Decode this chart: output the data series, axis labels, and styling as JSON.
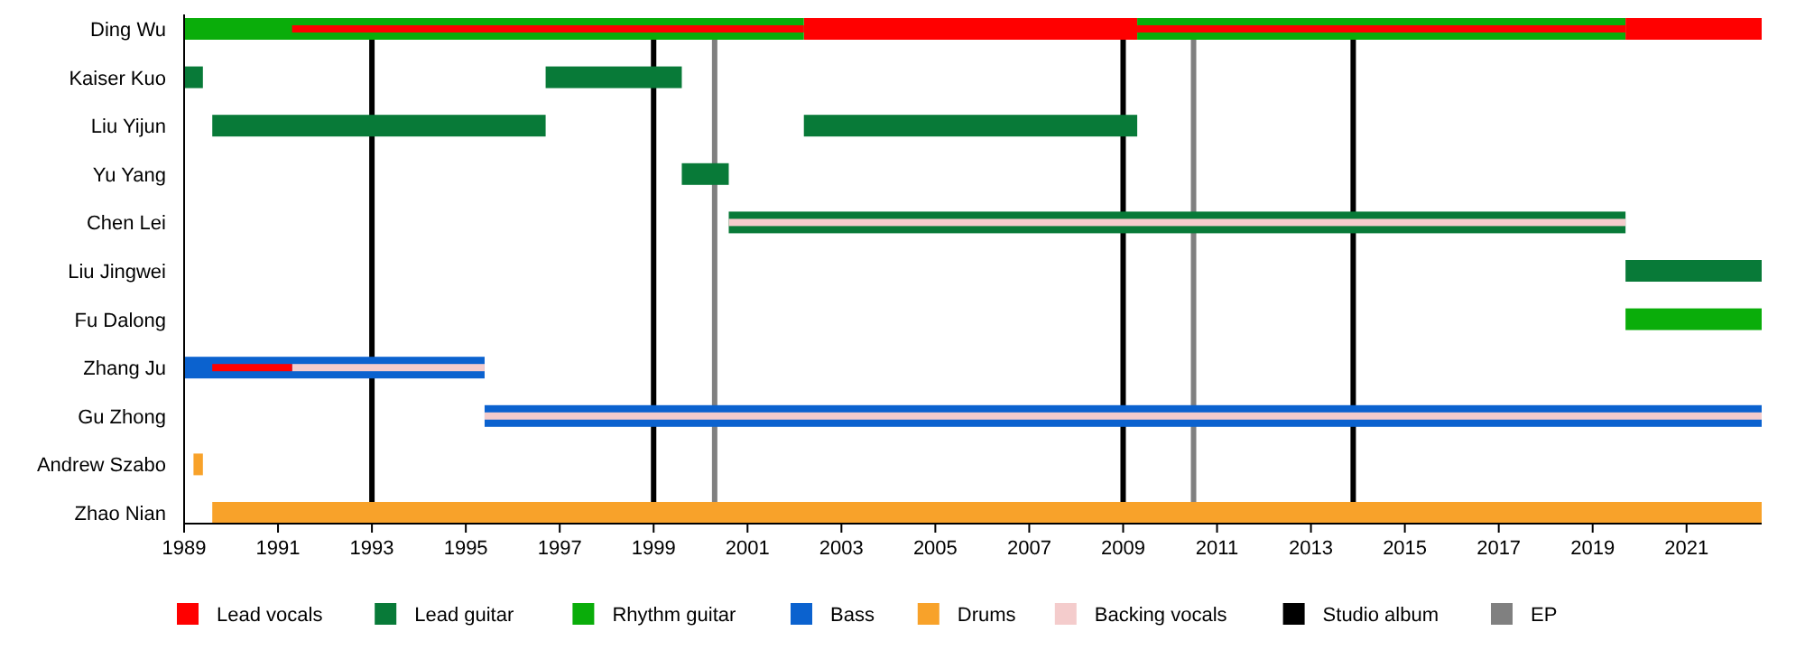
{
  "chart_data": {
    "type": "bar",
    "orientation": "horizontal",
    "categories": [
      "Ding Wu",
      "Kaiser Kuo",
      "Liu Yijun",
      "Yu Yang",
      "Chen Lei",
      "Liu Jingwei",
      "Fu Dalong",
      "Zhang Ju",
      "Gu Zhong",
      "Andrew Szabo",
      "Zhao Nian"
    ],
    "series": [
      {
        "name": "Lead vocals",
        "color": "#ff0000",
        "base": [
          2002.2,
          null,
          null,
          null,
          null,
          null,
          null,
          null,
          null,
          null,
          null
        ],
        "values": [
          7.1,
          null,
          null,
          null,
          null,
          null,
          null,
          null,
          null,
          null,
          null
        ]
      },
      {
        "name": "Lead guitar",
        "color": "#087a38",
        "base": [
          null,
          1989,
          1989.6,
          1999.6,
          2000.6,
          2019.7,
          null,
          null,
          null,
          null,
          null
        ],
        "values": [
          null,
          0.4,
          7.1,
          1.0,
          19.1,
          2.9,
          null,
          null,
          null,
          null,
          null
        ]
      },
      {
        "name": "Rhythm guitar",
        "color": "#0aad0a",
        "base": [
          1989,
          null,
          null,
          null,
          null,
          null,
          2019.7,
          null,
          null,
          null,
          null
        ],
        "values": [
          13.2,
          null,
          null,
          null,
          null,
          null,
          2.9,
          null,
          null,
          null,
          null
        ]
      },
      {
        "name": "Bass",
        "color": "#0b62cf",
        "base": [
          null,
          null,
          null,
          null,
          null,
          null,
          null,
          1989,
          1995.4,
          null,
          null
        ],
        "values": [
          null,
          null,
          null,
          null,
          null,
          null,
          null,
          6.4,
          27.2,
          null,
          null
        ]
      },
      {
        "name": "Drums",
        "color": "#f8a22a",
        "base": [
          null,
          null,
          null,
          null,
          null,
          null,
          null,
          null,
          null,
          1989.2,
          1989.6
        ],
        "values": [
          null,
          null,
          null,
          null,
          null,
          null,
          null,
          null,
          null,
          0.2,
          33.0
        ]
      },
      {
        "name": "Backing vocals",
        "color": "#f4cccc",
        "base": [
          null,
          null,
          null,
          null,
          2000.6,
          null,
          null,
          1991.3,
          1995.4,
          null,
          null
        ],
        "values": [
          null,
          null,
          null,
          null,
          19.1,
          null,
          null,
          4.1,
          27.2,
          null,
          null
        ]
      },
      {
        "color": "#087a38",
        "base": [
          null,
          1996.7,
          2002.2,
          null,
          null,
          null,
          null,
          null,
          null,
          null,
          null
        ],
        "values": [
          null,
          2.9,
          7.1,
          null,
          null,
          null,
          null,
          null,
          null,
          null,
          null
        ]
      },
      {
        "color": "#0aad0a",
        "base": [
          2009.3,
          null,
          null,
          null,
          null,
          null,
          null,
          null,
          null,
          null,
          null
        ],
        "values": [
          10.4,
          null,
          null,
          null,
          null,
          null,
          null,
          null,
          null,
          null,
          null
        ]
      },
      {
        "color": "#ff0000",
        "base": [
          2019.7,
          null,
          null,
          null,
          null,
          null,
          null,
          null,
          null,
          null,
          null
        ],
        "values": [
          2.9,
          null,
          null,
          null,
          null,
          null,
          null,
          null,
          null,
          null,
          null
        ]
      },
      {
        "color": "#ff0000",
        "base": [
          1991.3,
          null,
          null,
          null,
          null,
          null,
          null,
          1989.6,
          null,
          null,
          null
        ],
        "values": [
          10.9,
          null,
          null,
          null,
          null,
          null,
          null,
          1.7,
          null,
          null,
          null
        ]
      },
      {
        "color": "#ff0000",
        "base": [
          2009.3,
          null,
          null,
          null,
          null,
          null,
          null,
          null,
          null,
          null,
          null
        ],
        "values": [
          10.4,
          null,
          null,
          null,
          null,
          null,
          null,
          null,
          null,
          null,
          null
        ]
      }
    ],
    "xlim": [
      1989,
      2022.6
    ],
    "xticks": [
      1989,
      1991,
      1993,
      1995,
      1997,
      1999,
      2001,
      2003,
      2005,
      2007,
      2009,
      2011,
      2013,
      2015,
      2017,
      2019,
      2021
    ],
    "ref_lines": [
      {
        "axis": "x",
        "value": 1993.0,
        "label": "Studio album",
        "color": "#000000"
      },
      {
        "axis": "x",
        "value": 1999.0,
        "color": "#000000"
      },
      {
        "axis": "x",
        "value": 2009.0,
        "color": "#000000"
      },
      {
        "axis": "x",
        "value": 2013.9,
        "color": "#000000"
      },
      {
        "axis": "x",
        "value": 2000.3,
        "label": "EP",
        "color": "#808080"
      },
      {
        "axis": "x",
        "value": 2010.5,
        "color": "#808080"
      }
    ],
    "legend": "bottom"
  }
}
